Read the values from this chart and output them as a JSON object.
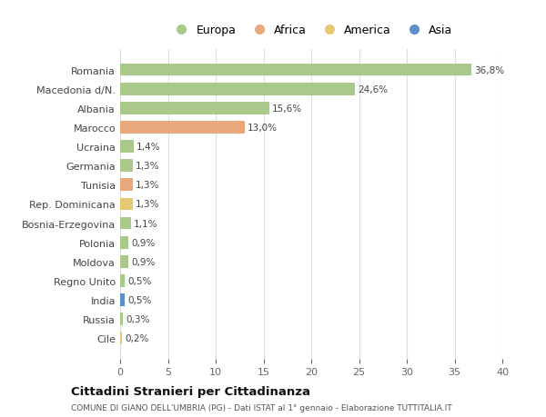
{
  "countries": [
    "Romania",
    "Macedonia d/N.",
    "Albania",
    "Marocco",
    "Ucraina",
    "Germania",
    "Tunisia",
    "Rep. Dominicana",
    "Bosnia-Erzegovina",
    "Polonia",
    "Moldova",
    "Regno Unito",
    "India",
    "Russia",
    "Cile"
  ],
  "values": [
    36.8,
    24.6,
    15.6,
    13.0,
    1.4,
    1.3,
    1.3,
    1.3,
    1.1,
    0.9,
    0.9,
    0.5,
    0.5,
    0.3,
    0.2
  ],
  "labels": [
    "36,8%",
    "24,6%",
    "15,6%",
    "13,0%",
    "1,4%",
    "1,3%",
    "1,3%",
    "1,3%",
    "1,1%",
    "0,9%",
    "0,9%",
    "0,5%",
    "0,5%",
    "0,3%",
    "0,2%"
  ],
  "continents": [
    "Europa",
    "Europa",
    "Europa",
    "Africa",
    "Europa",
    "Europa",
    "Africa",
    "America",
    "Europa",
    "Europa",
    "Europa",
    "Europa",
    "Asia",
    "Europa",
    "America"
  ],
  "colors": {
    "Europa": "#a8c98a",
    "Africa": "#e8a87c",
    "America": "#e8c870",
    "Asia": "#5b8fc8"
  },
  "title": "Cittadini Stranieri per Cittadinanza",
  "subtitle": "COMUNE DI GIANO DELL'UMBRIA (PG) - Dati ISTAT al 1° gennaio - Elaborazione TUTTITALIA.IT",
  "xlim": [
    0,
    40
  ],
  "xticks": [
    0,
    5,
    10,
    15,
    20,
    25,
    30,
    35,
    40
  ],
  "background_color": "#ffffff",
  "grid_color": "#dddddd",
  "legend_order": [
    "Europa",
    "Africa",
    "America",
    "Asia"
  ]
}
